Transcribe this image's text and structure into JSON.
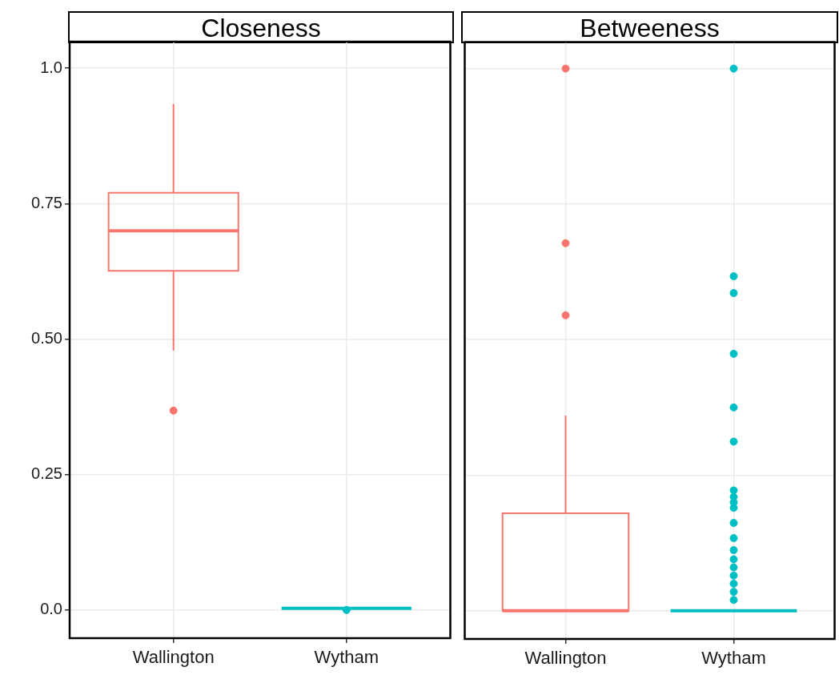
{
  "chart_data": [
    {
      "type": "box",
      "title": "Closeness",
      "categories": [
        "Wallington",
        "Wytham"
      ],
      "colors": [
        "#f8766d",
        "#00bfc4"
      ],
      "boxes": [
        {
          "low": 0.479,
          "q1": 0.626,
          "median": 0.7,
          "q3": 0.77,
          "high": 0.934,
          "outliers": [
            0.368
          ]
        },
        {
          "low": 0.003,
          "q1": 0.003,
          "median": 0.003,
          "q3": 0.003,
          "high": 0.003,
          "outliers": [
            0
          ]
        }
      ],
      "ylim": [
        -0.052,
        1.049
      ],
      "yticks": [
        {
          "value": 0,
          "label": "0.0"
        },
        0.25,
        {
          "value": 0.5,
          "label": "0.50"
        },
        0.75,
        {
          "value": 1,
          "label": "1.0"
        }
      ],
      "grid": true
    },
    {
      "type": "box",
      "title": "Betweeness",
      "categories": [
        "Wallington",
        "Wytham"
      ],
      "colors": [
        "#f8766d",
        "#00bfc4"
      ],
      "boxes": [
        {
          "low": 0,
          "q1": 0,
          "median": 0,
          "q3": 0.18,
          "high": 0.36,
          "outliers": [
            1.0,
            0.678,
            0.545
          ]
        },
        {
          "low": 0,
          "q1": 0,
          "median": 0,
          "q3": 0,
          "high": 0,
          "outliers": [
            1.0,
            0.617,
            0.586,
            0.474,
            0.375,
            0.312,
            0.222,
            0.21,
            0.2,
            0.19,
            0.162,
            0.134,
            0.112,
            0.095,
            0.08,
            0.065,
            0.05,
            0.035,
            0.02
          ]
        }
      ],
      "ylim": [
        -0.052,
        1.049
      ],
      "yticks": [
        0,
        0.25,
        0.5,
        0.75,
        1
      ],
      "grid": true,
      "tick_labels": "x"
    }
  ]
}
